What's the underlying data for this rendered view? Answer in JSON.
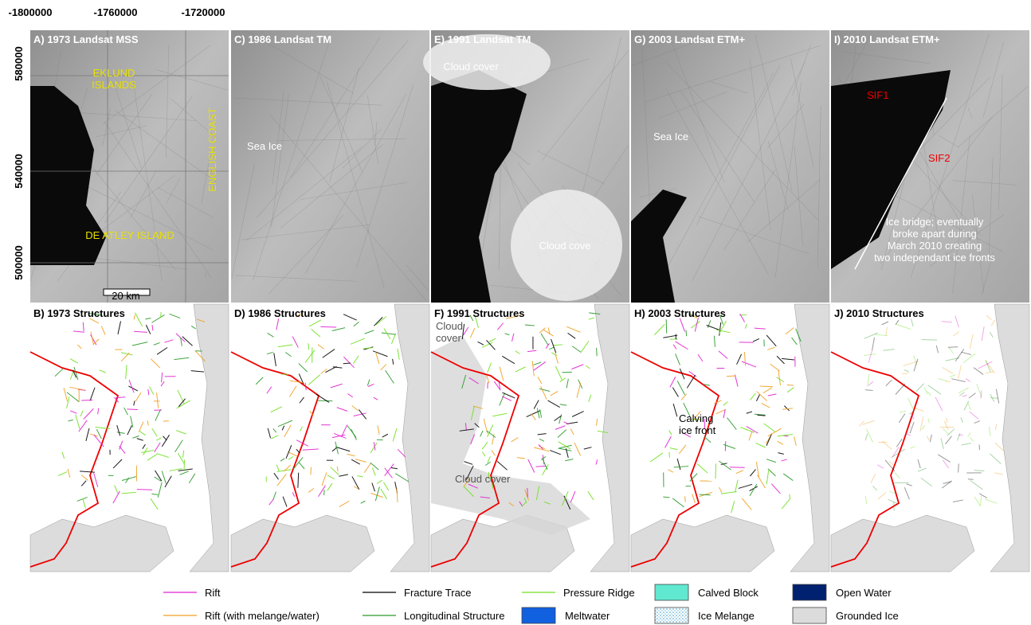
{
  "axes": {
    "x_ticks": [
      "-1800000",
      "-1760000",
      "-1720000"
    ],
    "y_ticks": [
      "580000",
      "540000",
      "500000"
    ]
  },
  "panels": [
    {
      "label": "A) 1973 Landsat MSS",
      "annotations": [
        {
          "lines": [
            "EKLUND",
            "ISLANDS"
          ]
        },
        {
          "lines": [
            "ENGLISH COAST"
          ]
        },
        {
          "lines": [
            "DE ATLEY ISLAND"
          ]
        },
        {
          "lines": [
            "20 km"
          ]
        }
      ]
    },
    {
      "label": "C) 1986 Landsat TM",
      "annotations": [
        {
          "lines": [
            "Sea Ice"
          ]
        }
      ]
    },
    {
      "label": "E) 1991 Landsat TM",
      "annotations": [
        {
          "lines": [
            "Cloud cover"
          ]
        },
        {
          "lines": [
            "Cloud cove"
          ]
        }
      ]
    },
    {
      "label": "G) 2003 Landsat ETM+",
      "annotations": [
        {
          "lines": [
            "Sea Ice"
          ]
        }
      ]
    },
    {
      "label": "I) 2010 Landsat ETM+",
      "annotations": [
        {
          "lines": [
            "SIF1"
          ]
        },
        {
          "lines": [
            "SIF2"
          ]
        },
        {
          "lines": [
            "Ice bridge; eventually",
            "broke apart during",
            "March 2010 creating",
            "two independant ice fronts"
          ]
        }
      ]
    },
    {
      "label": "B) 1973 Structures",
      "annotations": []
    },
    {
      "label": "D) 1986 Structures",
      "annotations": []
    },
    {
      "label": "F) 1991 Structures",
      "annotations": [
        {
          "lines": [
            "Cloud",
            "cover"
          ]
        },
        {
          "lines": [
            "Cloud cover"
          ]
        }
      ]
    },
    {
      "label": "H) 2003 Structures",
      "annotations": [
        {
          "lines": [
            "Calving",
            "ice front"
          ]
        }
      ]
    },
    {
      "label": "J) 2010 Structures",
      "annotations": []
    }
  ],
  "legend": [
    "Rift",
    "Fracture Trace",
    "Pressure Ridge",
    "Calved Block",
    "Open Water",
    "Rift (with melange/water)",
    "Longitudinal Structure",
    "Meltwater",
    "Ice Melange",
    "Grounded Ice"
  ]
}
